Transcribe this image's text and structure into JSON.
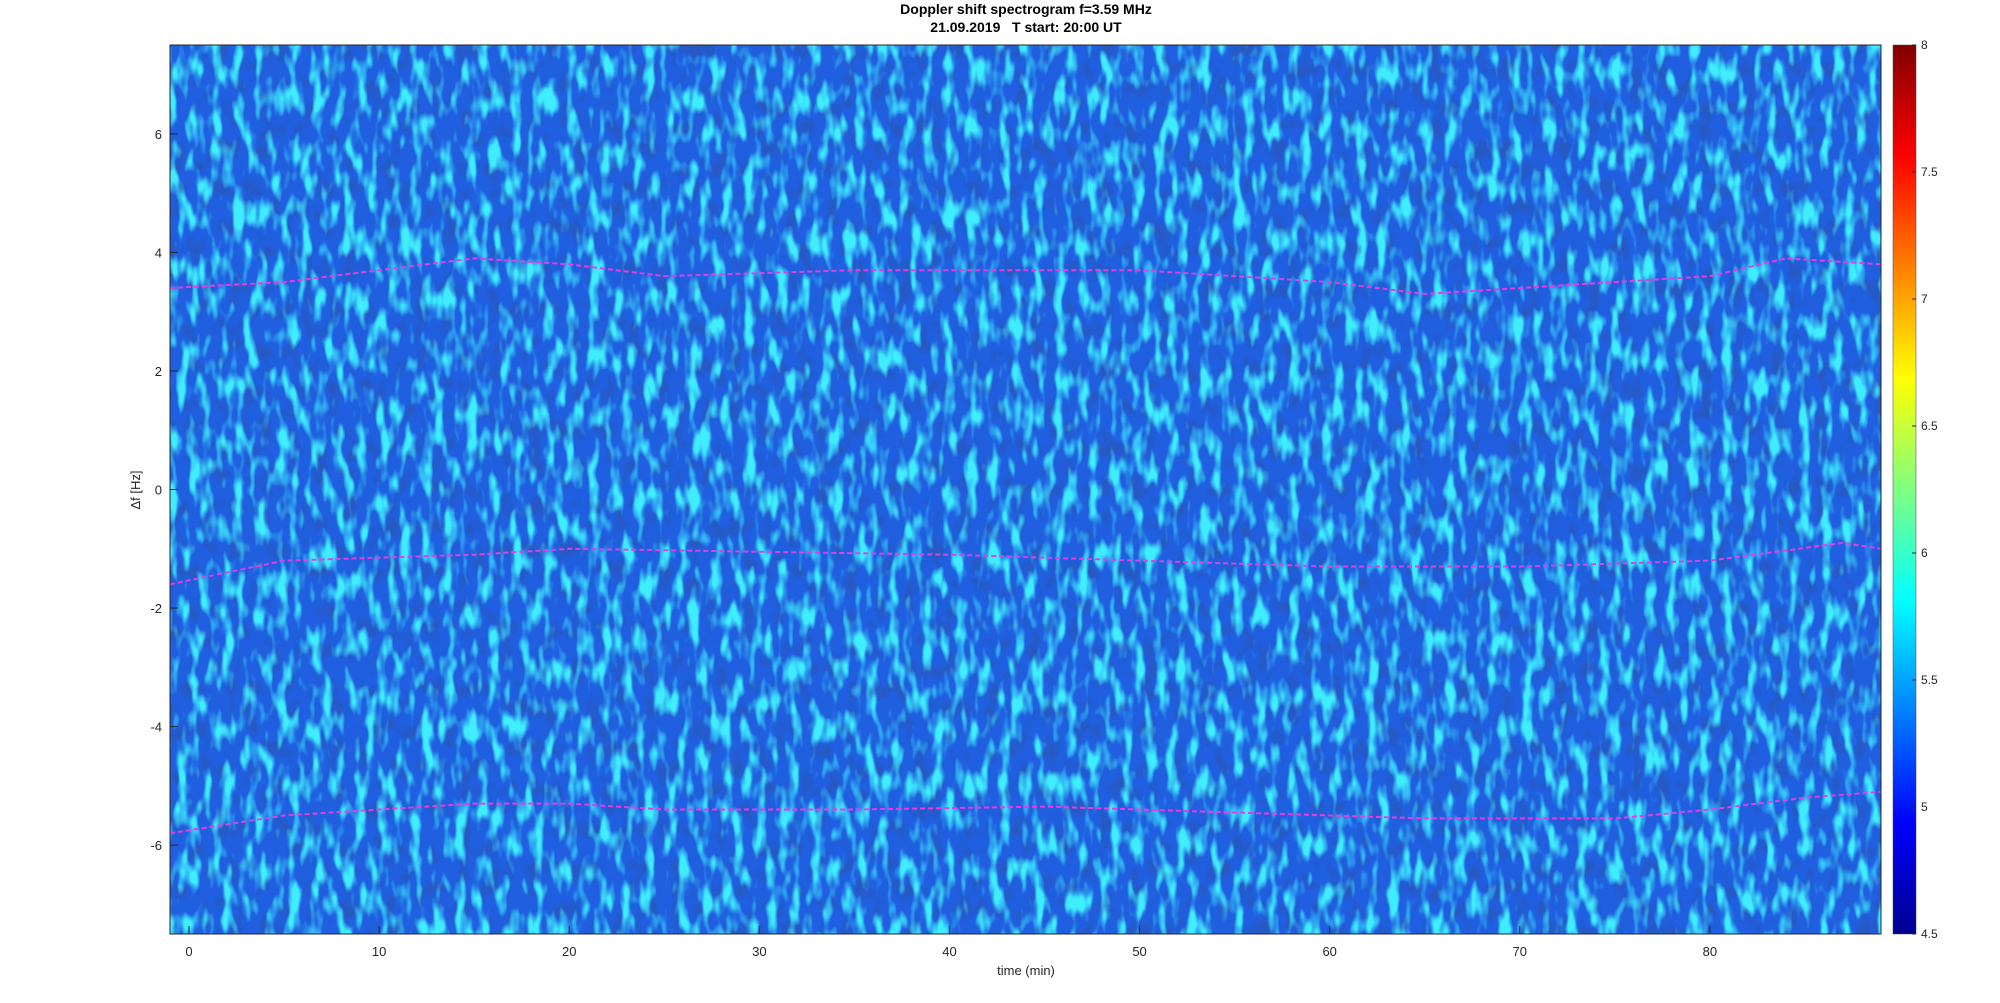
{
  "chart_data": {
    "type": "spectrogram",
    "title": "Doppler shift spectrogram f=3.59 MHz",
    "subtitle": "21.09.2019   T start: 20:00 UT",
    "xlabel": "time (min)",
    "ylabel": "Δf [Hz]",
    "xlim": [
      -1,
      89
    ],
    "xticks": [
      0,
      10,
      20,
      30,
      40,
      50,
      60,
      70,
      80
    ],
    "ylim": [
      -7.5,
      7.5
    ],
    "yticks": [
      -6,
      -4,
      -2,
      0,
      2,
      4,
      6
    ],
    "colormap": "jet",
    "clim": [
      4.5,
      8
    ],
    "cticks": [
      4.5,
      5,
      5.5,
      6,
      6.5,
      7,
      7.5,
      8
    ],
    "series": [
      {
        "color": "#e040e0",
        "x": [
          -1,
          5,
          10,
          15,
          20,
          25,
          35,
          50,
          55,
          60,
          65,
          70,
          75,
          80,
          84,
          89
        ],
        "values": [
          3.4,
          3.5,
          3.7,
          3.9,
          3.8,
          3.6,
          3.7,
          3.7,
          3.6,
          3.5,
          3.3,
          3.4,
          3.5,
          3.6,
          3.9,
          3.8
        ]
      },
      {
        "color": "#e040e0",
        "x": [
          -1,
          5,
          15,
          20,
          30,
          40,
          50,
          60,
          70,
          80,
          87,
          89
        ],
        "values": [
          -1.6,
          -1.2,
          -1.1,
          -1.0,
          -1.05,
          -1.1,
          -1.2,
          -1.3,
          -1.3,
          -1.2,
          -0.9,
          -1.0
        ]
      },
      {
        "color": "#e040e0",
        "x": [
          -1,
          5,
          10,
          15,
          20,
          25,
          35,
          45,
          55,
          65,
          75,
          80,
          85,
          89
        ],
        "values": [
          -5.8,
          -5.5,
          -5.4,
          -5.3,
          -5.3,
          -5.4,
          -5.4,
          -5.35,
          -5.45,
          -5.55,
          -5.55,
          -5.4,
          -5.2,
          -5.1
        ]
      }
    ]
  }
}
